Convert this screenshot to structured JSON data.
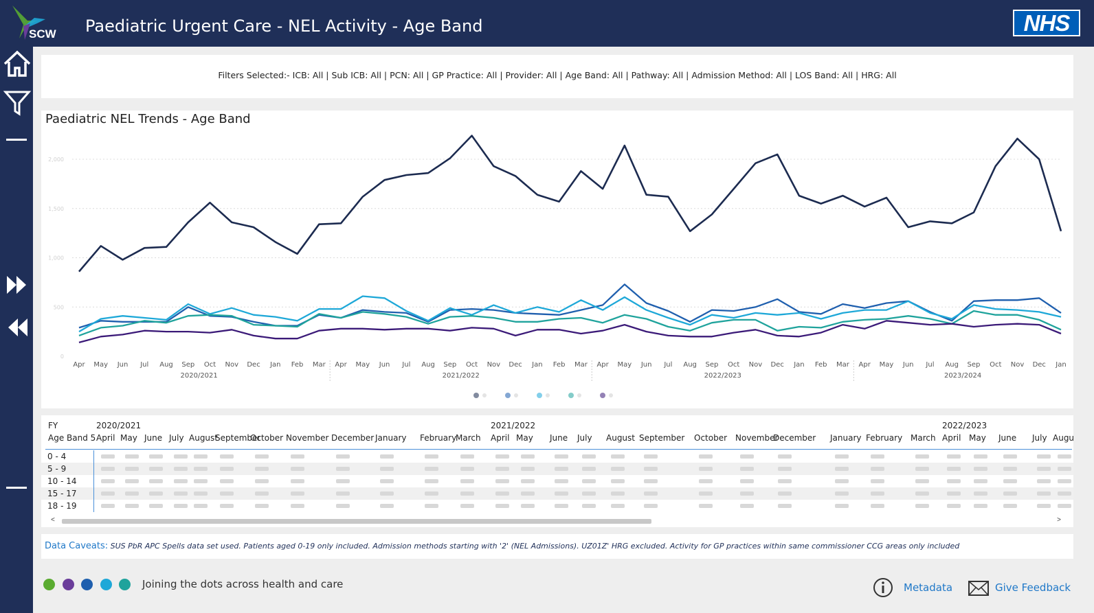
{
  "header": {
    "logo_text": "SCW",
    "title": "Paediatric Urgent Care - NEL Activity - Age Band",
    "nhs_logo": "NHS"
  },
  "sidebar": {
    "icons": [
      "home-icon",
      "filter-icon",
      "fast-forward-icon",
      "rewind-icon"
    ]
  },
  "filters": {
    "text": "Filters Selected:- ICB: All | Sub ICB: All | PCN: All | GP Practice: All | Provider: All | Age Band: All | Pathway: All | Admission Method: All | LOS Band: All | HRG: All"
  },
  "chart_data": {
    "type": "line",
    "title": "Paediatric NEL Trends - Age Band",
    "xlabel": "",
    "ylabel": "",
    "ylim": [
      0,
      2300
    ],
    "y_ticks": [
      0,
      500,
      1000,
      1500,
      2000
    ],
    "y_tick_labels": [
      "0",
      "500",
      "1,000",
      "1,500",
      "2,000"
    ],
    "grid": true,
    "month_labels": [
      "Apr",
      "May",
      "Jun",
      "Jul",
      "Aug",
      "Sep",
      "Oct",
      "Nov",
      "Dec",
      "Jan",
      "Feb",
      "Mar",
      "Apr",
      "May",
      "Jun",
      "Jul",
      "Aug",
      "Sep",
      "Oct",
      "Nov",
      "Dec",
      "Jan",
      "Feb",
      "Mar",
      "Apr",
      "May",
      "Jun",
      "Jul",
      "Aug",
      "Sep",
      "Oct",
      "Nov",
      "Dec",
      "Jan",
      "Feb",
      "Mar",
      "Apr",
      "May",
      "Jun",
      "Jul",
      "Aug",
      "Sep",
      "Oct",
      "Nov",
      "Dec",
      "Jan"
    ],
    "fy_labels": [
      {
        "label": "2020/2021",
        "start": 0,
        "end": 11
      },
      {
        "label": "2021/2022",
        "start": 12,
        "end": 23
      },
      {
        "label": "2022/2023",
        "start": 24,
        "end": 35
      },
      {
        "label": "2023/2024",
        "start": 36,
        "end": 45
      }
    ],
    "series": [
      {
        "name": "0 - 4",
        "color": "#1c2b50",
        "values": [
          860,
          1120,
          980,
          1100,
          1110,
          1360,
          1560,
          1360,
          1310,
          1160,
          1040,
          1340,
          1350,
          1620,
          1790,
          1840,
          1860,
          2010,
          2240,
          1930,
          1830,
          1640,
          1570,
          1880,
          1700,
          2140,
          1640,
          1620,
          1270,
          1440,
          1700,
          1960,
          2050,
          1630,
          1550,
          1630,
          1520,
          1610,
          1310,
          1370,
          1350,
          1460,
          1930,
          2210,
          2000,
          1270
        ]
      },
      {
        "name": "5 - 9",
        "color": "#1f5fae",
        "values": [
          290,
          360,
          350,
          350,
          350,
          500,
          410,
          400,
          350,
          310,
          310,
          420,
          390,
          470,
          450,
          440,
          350,
          470,
          480,
          470,
          440,
          430,
          420,
          470,
          520,
          730,
          540,
          460,
          350,
          470,
          460,
          500,
          580,
          450,
          430,
          530,
          490,
          540,
          560,
          450,
          360,
          560,
          570,
          570,
          590,
          440
        ]
      },
      {
        "name": "10 - 14",
        "color": "#1ea8d8",
        "values": [
          250,
          380,
          410,
          390,
          370,
          530,
          430,
          490,
          420,
          400,
          360,
          480,
          480,
          610,
          590,
          460,
          360,
          490,
          420,
          520,
          440,
          500,
          450,
          570,
          470,
          600,
          470,
          390,
          320,
          420,
          390,
          440,
          420,
          440,
          380,
          440,
          470,
          470,
          560,
          440,
          380,
          520,
          480,
          470,
          450,
          400
        ]
      },
      {
        "name": "15 - 17",
        "color": "#1fa39c",
        "values": [
          210,
          290,
          310,
          360,
          340,
          410,
          420,
          410,
          320,
          310,
          300,
          430,
          390,
          450,
          430,
          400,
          330,
          400,
          410,
          390,
          350,
          350,
          380,
          390,
          340,
          420,
          380,
          300,
          260,
          340,
          370,
          370,
          260,
          300,
          290,
          350,
          370,
          380,
          410,
          380,
          330,
          460,
          420,
          420,
          370,
          270
        ]
      },
      {
        "name": "18 - 19",
        "color": "#3b1a78",
        "values": [
          140,
          200,
          220,
          260,
          250,
          250,
          240,
          270,
          210,
          180,
          180,
          260,
          280,
          280,
          270,
          280,
          280,
          260,
          290,
          280,
          210,
          270,
          270,
          230,
          260,
          320,
          250,
          210,
          200,
          200,
          240,
          270,
          210,
          200,
          240,
          320,
          280,
          360,
          340,
          320,
          330,
          300,
          320,
          330,
          320,
          230
        ]
      }
    ]
  },
  "table": {
    "fy_header": "FY",
    "age_band_header": "Age Band 5",
    "fy_labels": [
      {
        "label": "2020/2021",
        "col": 0
      },
      {
        "label": "2021/2022",
        "col": 12
      },
      {
        "label": "2022/2023",
        "col": 24
      }
    ],
    "months": [
      "April",
      "May",
      "June",
      "July",
      "August",
      "September",
      "October",
      "November",
      "December",
      "January",
      "February",
      "March",
      "April",
      "May",
      "June",
      "July",
      "August",
      "September",
      "October",
      "November",
      "December",
      "January",
      "February",
      "March",
      "April",
      "May",
      "June",
      "July",
      "Augu"
    ],
    "rows": [
      "0 - 4",
      "5 - 9",
      "10 - 14",
      "15 - 17",
      "18 - 19"
    ]
  },
  "caveats": {
    "label": "Data Caveats:",
    "text": "SUS PbR APC Spells data set used. Patients aged 0-19 only included. Admission methods starting with '2' (NEL Admissions). UZ01Z' HRG excluded. Activity for GP practices within same commissioner CCG areas only included"
  },
  "footer": {
    "dot_colors": [
      "#5aab30",
      "#6a3d9a",
      "#1f5fae",
      "#1ea8d8",
      "#1fa39c"
    ],
    "tagline": "Joining the dots across health and care",
    "metadata_label": "Metadata",
    "feedback_label": "Give Feedback"
  }
}
